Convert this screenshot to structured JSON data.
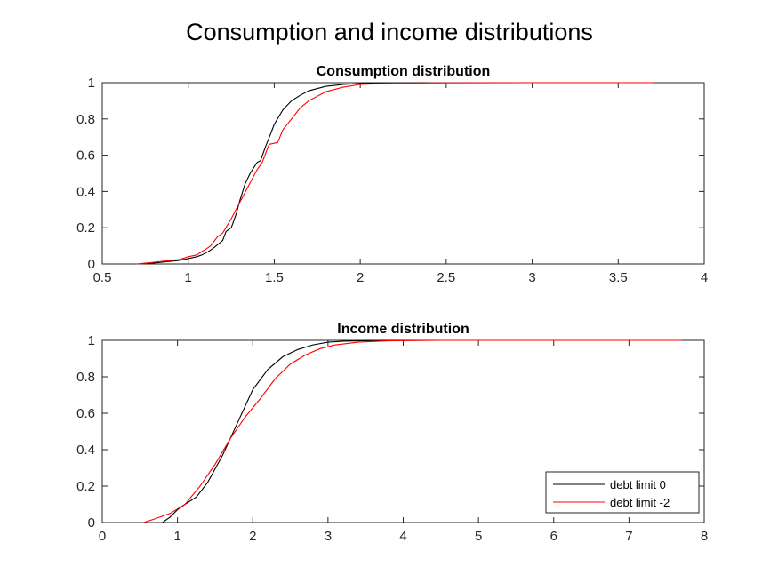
{
  "figure": {
    "title": "Consumption and income distributions"
  },
  "legend": {
    "placement": "bottom-right of lower panel",
    "entries": [
      {
        "label": "debt limit 0",
        "color": "#000000"
      },
      {
        "label": "debt limit -2",
        "color": "#ff0000"
      }
    ]
  },
  "chart_data": [
    {
      "type": "line",
      "title": "Consumption distribution",
      "xlabel": "",
      "ylabel": "",
      "xlim": [
        0.5,
        4
      ],
      "ylim": [
        0,
        1
      ],
      "xticks": [
        "0.5",
        "1",
        "1.5",
        "2",
        "2.5",
        "3",
        "3.5",
        "4"
      ],
      "yticks": [
        "0",
        "0.2",
        "0.4",
        "0.6",
        "0.8",
        "1"
      ],
      "grid": false,
      "series": [
        {
          "name": "debt limit 0",
          "color": "#000000",
          "x": [
            0.75,
            0.85,
            0.95,
            1.0,
            1.05,
            1.08,
            1.12,
            1.15,
            1.2,
            1.22,
            1.25,
            1.28,
            1.3,
            1.33,
            1.36,
            1.4,
            1.42,
            1.45,
            1.48,
            1.5,
            1.55,
            1.6,
            1.65,
            1.7,
            1.8,
            1.9,
            2.0,
            2.2,
            2.4
          ],
          "y": [
            0.0,
            0.01,
            0.02,
            0.03,
            0.04,
            0.05,
            0.07,
            0.09,
            0.13,
            0.18,
            0.2,
            0.28,
            0.35,
            0.44,
            0.5,
            0.56,
            0.57,
            0.65,
            0.72,
            0.77,
            0.85,
            0.9,
            0.93,
            0.955,
            0.98,
            0.99,
            0.995,
            0.998,
            1.0
          ]
        },
        {
          "name": "debt limit -2",
          "color": "#ff0000",
          "x": [
            0.7,
            0.8,
            0.9,
            0.95,
            1.0,
            1.05,
            1.08,
            1.1,
            1.13,
            1.17,
            1.2,
            1.25,
            1.3,
            1.35,
            1.4,
            1.43,
            1.47,
            1.52,
            1.55,
            1.6,
            1.65,
            1.7,
            1.8,
            1.9,
            2.0,
            2.2,
            2.5,
            3.0,
            3.5,
            3.7
          ],
          "y": [
            0.0,
            0.01,
            0.02,
            0.025,
            0.04,
            0.05,
            0.07,
            0.08,
            0.1,
            0.15,
            0.17,
            0.25,
            0.34,
            0.43,
            0.52,
            0.56,
            0.66,
            0.67,
            0.74,
            0.8,
            0.86,
            0.9,
            0.95,
            0.975,
            0.99,
            0.997,
            0.999,
            1.0,
            1.0,
            1.0
          ]
        }
      ]
    },
    {
      "type": "line",
      "title": "Income distribution",
      "xlabel": "",
      "ylabel": "",
      "xlim": [
        0,
        8
      ],
      "ylim": [
        0,
        1
      ],
      "xticks": [
        "0",
        "1",
        "2",
        "3",
        "4",
        "5",
        "6",
        "7",
        "8"
      ],
      "yticks": [
        "0",
        "0.2",
        "0.4",
        "0.6",
        "0.8",
        "1"
      ],
      "grid": false,
      "series": [
        {
          "name": "debt limit 0",
          "color": "#000000",
          "x": [
            0.8,
            0.9,
            1.0,
            1.1,
            1.25,
            1.4,
            1.6,
            1.8,
            2.0,
            2.2,
            2.4,
            2.6,
            2.8,
            3.0,
            3.2,
            3.5,
            4.0,
            4.5
          ],
          "y": [
            0.0,
            0.03,
            0.07,
            0.1,
            0.14,
            0.22,
            0.37,
            0.55,
            0.73,
            0.84,
            0.91,
            0.95,
            0.975,
            0.99,
            0.995,
            0.998,
            1.0,
            1.0
          ]
        },
        {
          "name": "debt limit -2",
          "color": "#ff0000",
          "x": [
            0.55,
            0.7,
            0.9,
            1.1,
            1.3,
            1.5,
            1.7,
            1.9,
            2.1,
            2.3,
            2.5,
            2.7,
            2.9,
            3.1,
            3.4,
            3.8,
            4.5,
            5.5,
            6.5,
            7.7
          ],
          "y": [
            0.0,
            0.02,
            0.05,
            0.1,
            0.2,
            0.32,
            0.46,
            0.58,
            0.68,
            0.79,
            0.87,
            0.92,
            0.955,
            0.975,
            0.99,
            0.997,
            1.0,
            1.0,
            1.0,
            1.0
          ]
        }
      ]
    }
  ]
}
